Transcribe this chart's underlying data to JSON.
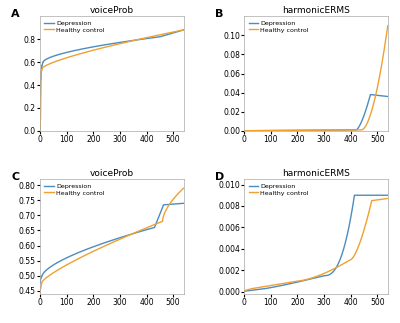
{
  "panel_A": {
    "title": "voiceProb",
    "label": "A",
    "ylim": [
      0.0,
      1.0
    ],
    "xlim": [
      0,
      540
    ],
    "yticks": [
      0.0,
      0.2,
      0.4,
      0.6,
      0.8
    ],
    "xticks": [
      0,
      100,
      200,
      300,
      400,
      500
    ]
  },
  "panel_B": {
    "title": "harmonicERMS",
    "label": "B",
    "ylim": [
      0.0,
      0.12
    ],
    "xlim": [
      0,
      540
    ],
    "yticks": [
      0.0,
      0.02,
      0.04,
      0.06,
      0.08,
      0.1
    ],
    "xticks": [
      0,
      100,
      200,
      300,
      400,
      500
    ]
  },
  "panel_C": {
    "title": "voiceProb",
    "label": "C",
    "ylim": [
      0.44,
      0.82
    ],
    "xlim": [
      0,
      540
    ],
    "yticks": [
      0.45,
      0.5,
      0.55,
      0.6,
      0.65,
      0.7,
      0.75,
      0.8
    ],
    "xticks": [
      0,
      100,
      200,
      300,
      400,
      500
    ]
  },
  "panel_D": {
    "title": "harmonicERMS",
    "label": "D",
    "ylim": [
      -0.0002,
      0.0105
    ],
    "xlim": [
      0,
      540
    ],
    "yticks": [
      0.0,
      0.002,
      0.004,
      0.006,
      0.008,
      0.01
    ],
    "xticks": [
      0,
      100,
      200,
      300,
      400,
      500
    ]
  },
  "depression_color": "#4c8cbf",
  "healthy_color": "#f0a030",
  "depression_label": "Depression",
  "healthy_label": "Healthy control",
  "linewidth": 1.0,
  "background": "#ffffff"
}
